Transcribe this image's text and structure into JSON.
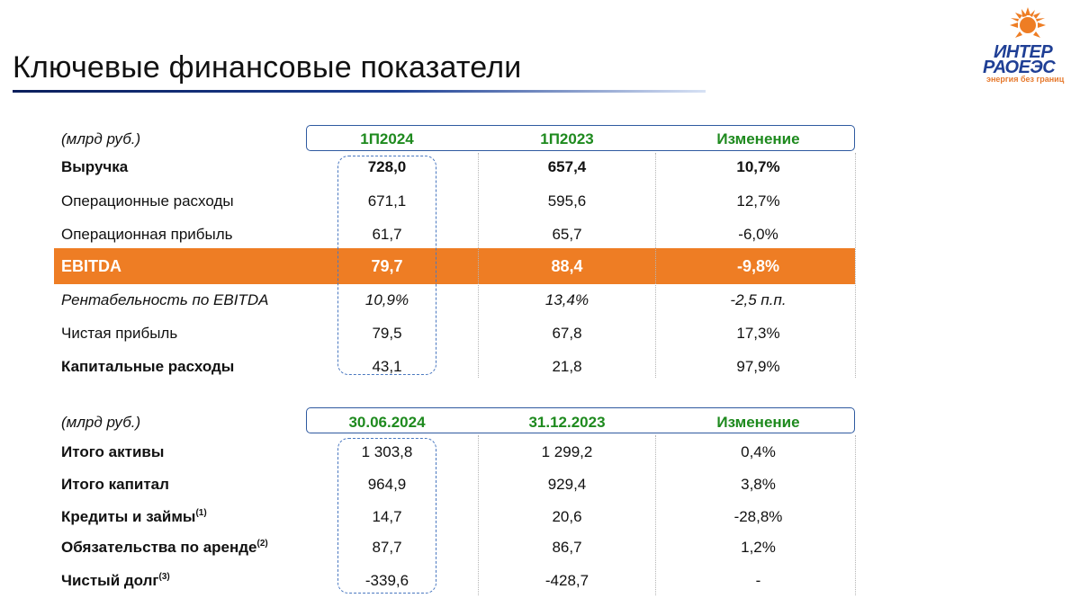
{
  "page_title": "Ключевые финансовые показатели",
  "logo": {
    "line1": "ИНТЕР",
    "line2": "РАОЕЭС",
    "tagline": "энергия без границ",
    "brand_blue": "#1f3f95",
    "brand_orange": "#ee7d24"
  },
  "colors": {
    "header_green": "#1e8a1e",
    "ebitda_orange": "#ee7d24",
    "frame_blue": "#2f5aa0",
    "title_rule": "#0b1f5c"
  },
  "table1": {
    "unit": "(млрд руб.)",
    "headers": [
      "1П2024",
      "1П2023",
      "Изменение"
    ],
    "rows": [
      {
        "label": "Выручка",
        "v1": "728,0",
        "v2": "657,4",
        "v3": "10,7%"
      },
      {
        "label": "Операционные расходы",
        "v1": "671,1",
        "v2": "595,6",
        "v3": "12,7%"
      },
      {
        "label": "Операционная прибыль",
        "v1": "61,7",
        "v2": "65,7",
        "v3": "-6,0%"
      },
      {
        "label": "EBITDA",
        "v1": "79,7",
        "v2": "88,4",
        "v3": "-9,8%"
      },
      {
        "label": "Рентабельность по EBITDA",
        "v1": "10,9%",
        "v2": "13,4%",
        "v3": "-2,5 п.п."
      },
      {
        "label": "Чистая прибыль",
        "v1": "79,5",
        "v2": "67,8",
        "v3": "17,3%"
      },
      {
        "label": "Капитальные расходы",
        "v1": "43,1",
        "v2": "21,8",
        "v3": "97,9%"
      }
    ]
  },
  "table2": {
    "unit": "(млрд руб.)",
    "headers": [
      "30.06.2024",
      "31.12.2023",
      "Изменение"
    ],
    "rows": [
      {
        "label": "Итого активы",
        "note": "",
        "v1": "1 303,8",
        "v2": "1 299,2",
        "v3": "0,4%"
      },
      {
        "label": "Итого капитал",
        "note": "",
        "v1": "964,9",
        "v2": "929,4",
        "v3": "3,8%"
      },
      {
        "label": "Кредиты и займы",
        "note": "(1)",
        "v1": "14,7",
        "v2": "20,6",
        "v3": "-28,8%"
      },
      {
        "label": "Обязательства по аренде",
        "note": "(2)",
        "v1": "87,7",
        "v2": "86,7",
        "v3": "1,2%"
      },
      {
        "label": "Чистый долг",
        "note": "(3)",
        "v1": "-339,6",
        "v2": "-428,7",
        "v3": "-"
      }
    ]
  }
}
